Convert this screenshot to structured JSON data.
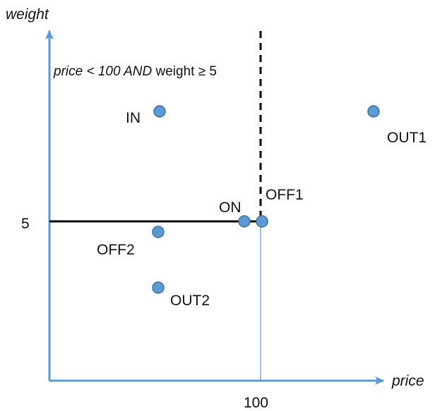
{
  "colors": {
    "axis": "#5b9bd5",
    "point_fill": "#5b9bd5",
    "point_stroke": "#41719c",
    "boundary": "#000000",
    "text": "#111111"
  },
  "axes": {
    "x_label": "price",
    "y_label": "weight",
    "x_tick": "100",
    "y_tick": "5"
  },
  "condition": {
    "part1": "price < 100 AND ",
    "part2": "weight ≥ 5"
  },
  "points": {
    "in": {
      "label": "IN"
    },
    "out1": {
      "label": "OUT1"
    },
    "on": {
      "label": "ON"
    },
    "off1": {
      "label": "OFF1"
    },
    "off2": {
      "label": "OFF2"
    },
    "out2": {
      "label": "OUT2"
    }
  }
}
